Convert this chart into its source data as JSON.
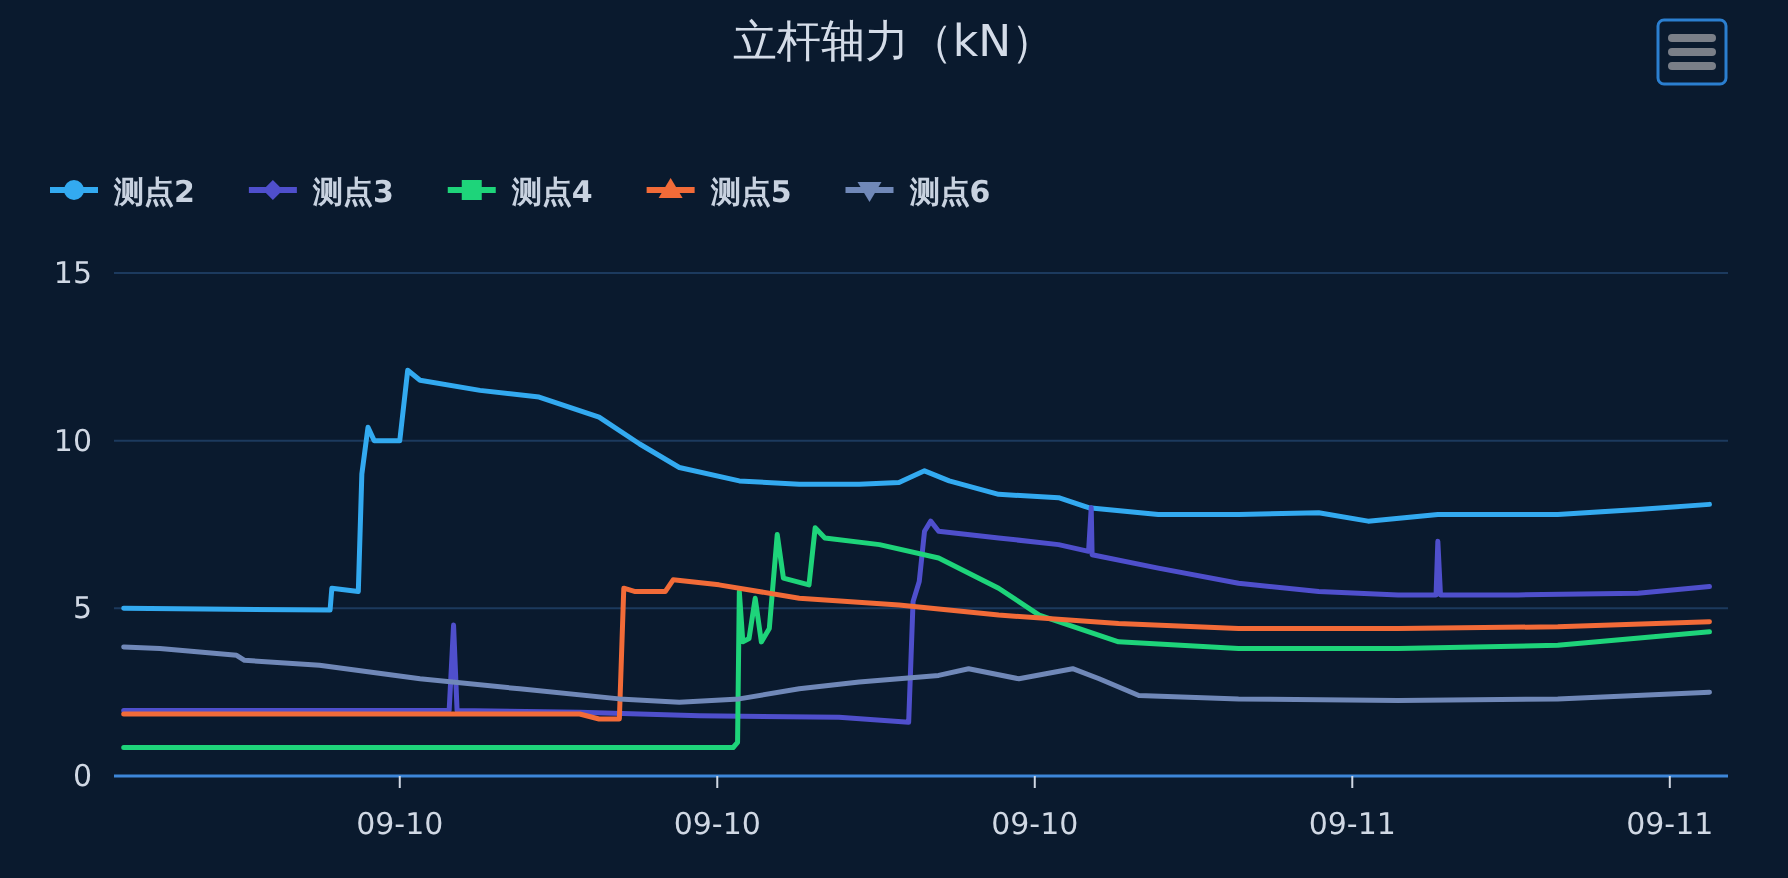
{
  "chart_data": {
    "type": "line",
    "title": "立杆轴力（kN）",
    "legend": "top left",
    "grid": "y",
    "line_style": "solid",
    "xlim": [
      "--09-10T00:36",
      "--09-11T07:06"
    ],
    "xticks": [
      {
        "value": "--09-10T06:00",
        "label": "09-10"
      },
      {
        "value": "--09-10T12:00",
        "label": "09-10"
      },
      {
        "value": "--09-10T18:00",
        "label": "09-10"
      },
      {
        "value": "--09-11T00:00",
        "label": "09-11"
      },
      {
        "value": "--09-11T06:00",
        "label": "09-11"
      }
    ],
    "ylim": [
      0,
      15
    ],
    "yticks": [
      0,
      5,
      10,
      15
    ],
    "series": [
      {
        "name": "测点2",
        "color": "#33aaf0",
        "x": [
          "--09-10T00:47",
          "--09-10T04:41",
          "--09-10T04:43",
          "--09-10T05:13",
          "--09-10T05:17",
          "--09-10T05:24",
          "--09-10T05:31",
          "--09-10T06:00",
          "--09-10T06:09",
          "--09-10T06:23",
          "--09-10T07:31",
          "--09-10T08:38",
          "--09-10T09:46",
          "--09-10T10:32",
          "--09-10T11:17",
          "--09-10T12:25",
          "--09-10T13:33",
          "--09-10T14:41",
          "--09-10T15:26",
          "--09-10T15:55",
          "--09-10T16:23",
          "--09-10T17:19",
          "--09-10T18:27",
          "--09-10T19:01",
          "--09-10T20:20",
          "--09-10T21:51",
          "--09-10T23:22",
          "--09-11T00:18",
          "--09-11T01:37",
          "--09-11T03:53",
          "--09-11T05:24",
          "--09-11T06:45"
        ],
        "values": [
          5.0,
          4.95,
          5.6,
          5.5,
          9.0,
          10.4,
          10.0,
          10.0,
          12.1,
          11.8,
          11.5,
          11.3,
          10.7,
          9.9,
          9.2,
          8.8,
          8.7,
          8.7,
          8.75,
          9.1,
          8.8,
          8.4,
          8.3,
          8.0,
          7.8,
          7.8,
          7.85,
          7.6,
          7.8,
          7.8,
          7.95,
          8.1
        ]
      },
      {
        "name": "测点3",
        "color": "#4f4fcc",
        "x": [
          "--09-10T00:47",
          "--09-10T06:56",
          "--09-10T07:01",
          "--09-10T07:05",
          "--09-10T09:24",
          "--09-10T11:40",
          "--09-10T14:18",
          "--09-10T15:37",
          "--09-10T15:42",
          "--09-10T15:49",
          "--09-10T15:55",
          "--09-10T16:02",
          "--09-10T16:11",
          "--09-10T17:19",
          "--09-10T18:27",
          "--09-10T19:01",
          "--09-10T19:04",
          "--09-10T19:05",
          "--09-10T20:20",
          "--09-10T21:51",
          "--09-10T23:22",
          "--09-11T00:52",
          "--09-11T01:35",
          "--09-11T01:37",
          "--09-11T01:40",
          "--09-11T03:08",
          "--09-11T05:24",
          "--09-11T06:45"
        ],
        "values": [
          1.95,
          1.95,
          4.5,
          1.95,
          1.9,
          1.8,
          1.75,
          1.6,
          5.2,
          5.8,
          7.3,
          7.6,
          7.3,
          7.1,
          6.9,
          6.7,
          8.0,
          6.6,
          6.2,
          5.75,
          5.5,
          5.4,
          5.4,
          7.0,
          5.4,
          5.4,
          5.45,
          5.65
        ]
      },
      {
        "name": "测点4",
        "color": "#1ed47a",
        "x": [
          "--09-10T00:47",
          "--09-10T12:18",
          "--09-10T12:23",
          "--09-10T12:25",
          "--09-10T12:29",
          "--09-10T12:36",
          "--09-10T12:43",
          "--09-10T12:50",
          "--09-10T12:59",
          "--09-10T13:08",
          "--09-10T13:15",
          "--09-10T13:44",
          "--09-10T13:51",
          "--09-10T14:02",
          "--09-10T15:04",
          "--09-10T16:11",
          "--09-10T17:19",
          "--09-10T18:05",
          "--09-10T19:35",
          "--09-10T21:51",
          "--09-11T00:52",
          "--09-11T03:53",
          "--09-11T06:45"
        ],
        "values": [
          0.85,
          0.85,
          1.0,
          5.5,
          4.0,
          4.1,
          5.3,
          4.0,
          4.4,
          7.2,
          5.9,
          5.7,
          7.4,
          7.1,
          6.9,
          6.5,
          5.6,
          4.8,
          4.0,
          3.8,
          3.8,
          3.9,
          4.3
        ]
      },
      {
        "name": "测点5",
        "color": "#f26b38",
        "x": [
          "--09-10T00:47",
          "--09-10T09:24",
          "--09-10T09:46",
          "--09-10T10:09",
          "--09-10T10:14",
          "--09-10T10:27",
          "--09-10T11:01",
          "--09-10T11:10",
          "--09-10T12:02",
          "--09-10T13:33",
          "--09-10T15:26",
          "--09-10T17:19",
          "--09-10T19:35",
          "--09-10T21:51",
          "--09-11T00:52",
          "--09-11T03:53",
          "--09-11T06:45"
        ],
        "values": [
          1.85,
          1.85,
          1.7,
          1.7,
          5.6,
          5.5,
          5.5,
          5.85,
          5.7,
          5.3,
          5.1,
          4.8,
          4.55,
          4.4,
          4.4,
          4.45,
          4.6
        ]
      },
      {
        "name": "测点6",
        "color": "#7088b8",
        "x": [
          "--09-10T00:47",
          "--09-10T01:28",
          "--09-10T02:55",
          "--09-10T03:04",
          "--09-10T04:29",
          "--09-10T06:23",
          "--09-10T08:16",
          "--09-10T10:09",
          "--09-10T11:17",
          "--09-10T12:25",
          "--09-10T13:33",
          "--09-10T14:41",
          "--09-10T16:11",
          "--09-10T16:45",
          "--09-10T17:42",
          "--09-10T18:43",
          "--09-10T19:13",
          "--09-10T19:58",
          "--09-10T21:51",
          "--09-11T00:52",
          "--09-11T03:53",
          "--09-11T06:45"
        ],
        "values": [
          3.85,
          3.8,
          3.6,
          3.45,
          3.3,
          2.9,
          2.6,
          2.3,
          2.2,
          2.3,
          2.6,
          2.8,
          3.0,
          3.2,
          2.9,
          3.2,
          2.9,
          2.4,
          2.3,
          2.25,
          2.3,
          2.5
        ]
      }
    ]
  }
}
